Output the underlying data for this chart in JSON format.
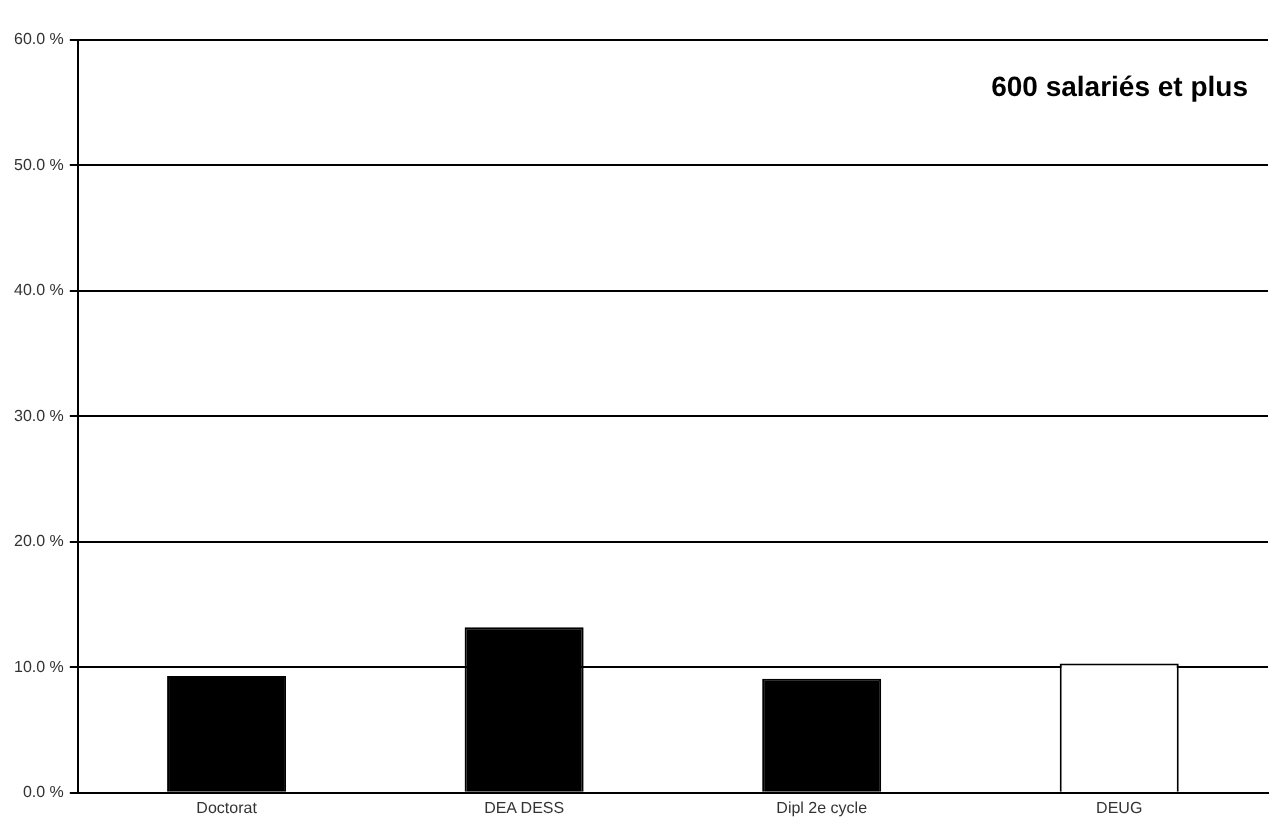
{
  "chart_data": {
    "type": "bar",
    "title": "600 salariés et plus",
    "categories": [
      "Doctorat",
      "DEA DESS",
      "Dipl 2e cycle",
      "DEUG"
    ],
    "values": [
      9.3,
      13.2,
      9.1,
      10.3
    ],
    "colors": [
      "#000000",
      "#000000",
      "#000000",
      "#ffffff"
    ],
    "ylim": [
      0,
      60
    ],
    "yticks": [
      {
        "value": 0,
        "label": "0.0 %"
      },
      {
        "value": 10,
        "label": "10.0 %"
      },
      {
        "value": 20,
        "label": "20.0 %"
      },
      {
        "value": 30,
        "label": "30.0 %"
      },
      {
        "value": 40,
        "label": "40.0 %"
      },
      {
        "value": 50,
        "label": "50.0 %"
      },
      {
        "value": 60,
        "label": "60.0 %"
      }
    ],
    "grid": "y",
    "legend": false
  }
}
